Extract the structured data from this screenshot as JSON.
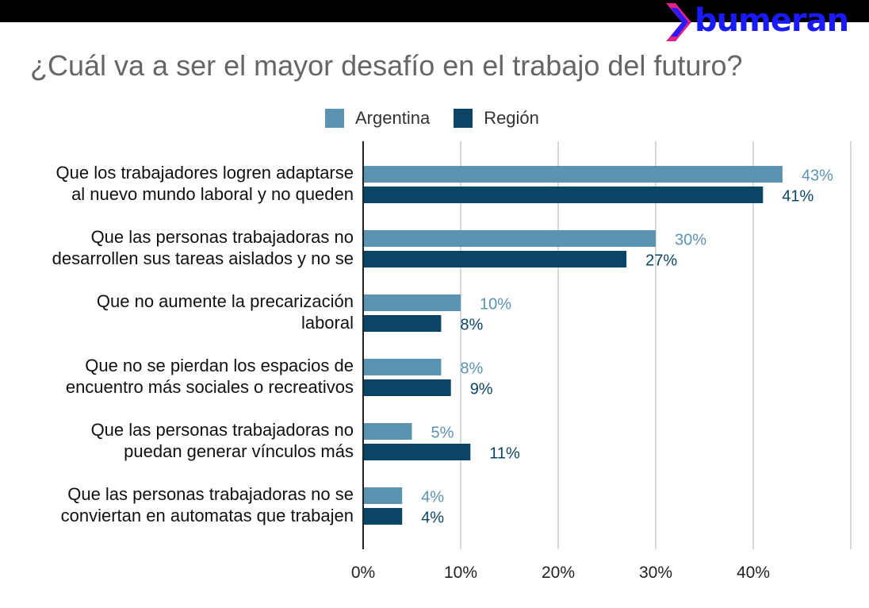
{
  "logo": {
    "text": "bumeran"
  },
  "chart_data": {
    "type": "bar",
    "orientation": "horizontal",
    "title": "¿Cuál va a ser el mayor desafío en el trabajo del futuro?",
    "categories": [
      [
        "Que los trabajadores logren adaptarse",
        "al nuevo mundo laboral y no queden"
      ],
      [
        "Que las personas trabajadoras no",
        "desarrollen sus tareas aislados y no se"
      ],
      [
        "Que no aumente la precarización",
        "laboral"
      ],
      [
        "Que no se pierdan los espacios de",
        "encuentro más sociales o recreativos"
      ],
      [
        "Que las personas trabajadoras no",
        "puedan generar vínculos más"
      ],
      [
        "Que las personas trabajadoras no se",
        "conviertan en automatas que trabajen"
      ]
    ],
    "series": [
      {
        "name": "Argentina",
        "color": "#5b93b2",
        "values": [
          43,
          30,
          10,
          8,
          5,
          4
        ],
        "labels": [
          "43%",
          "30%",
          "10%",
          "8%",
          "5%",
          "4%"
        ]
      },
      {
        "name": "Región",
        "color": "#0b4565",
        "values": [
          41,
          27,
          8,
          9,
          11,
          4
        ],
        "labels": [
          "41%",
          "27%",
          "8%",
          "9%",
          "11%",
          "4%"
        ]
      }
    ],
    "xlim": [
      0,
      50
    ],
    "xticks": [
      0,
      10,
      20,
      30,
      40
    ],
    "xtick_labels": [
      "0%",
      "10%",
      "20%",
      "30%",
      "40%"
    ],
    "grid": true,
    "legend": "top"
  }
}
